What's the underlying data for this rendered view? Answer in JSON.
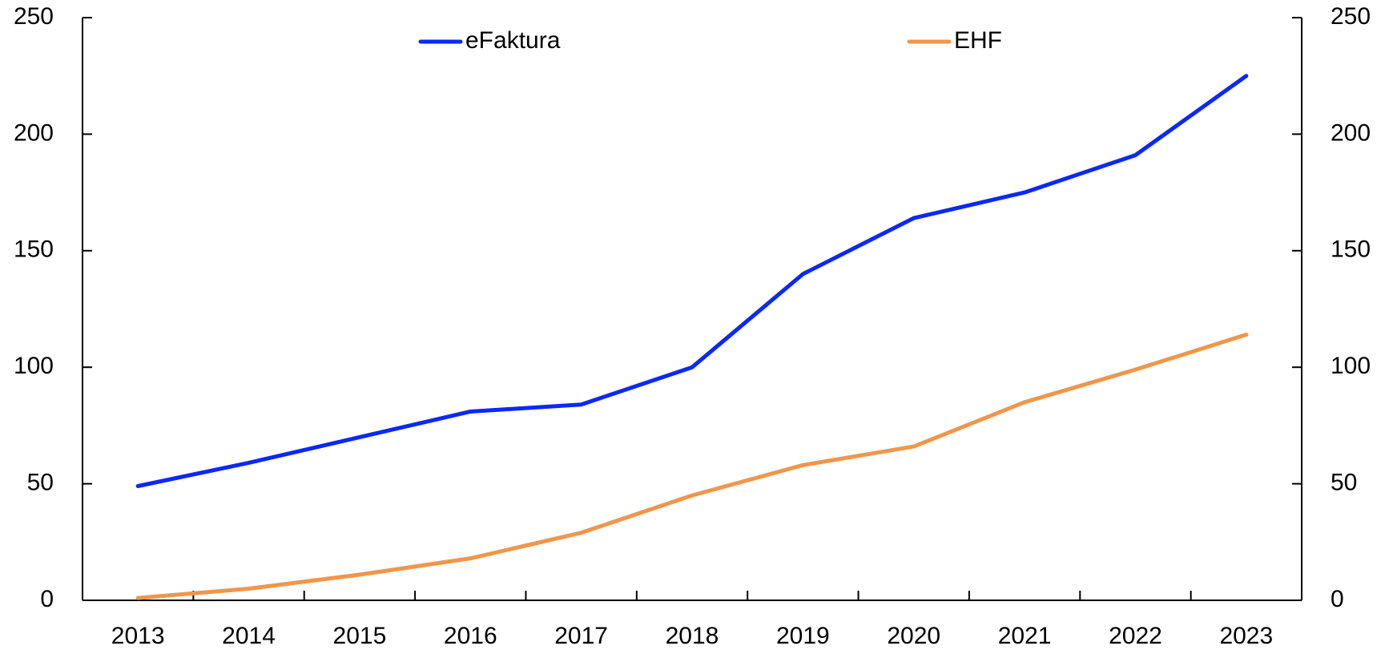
{
  "chart_data": {
    "type": "line",
    "categories": [
      "2013",
      "2014",
      "2015",
      "2016",
      "2017",
      "2018",
      "2019",
      "2020",
      "2021",
      "2022",
      "2023"
    ],
    "series": [
      {
        "name": "eFaktura",
        "color": "#0a28ff",
        "values": [
          49,
          59,
          70,
          81,
          84,
          100,
          140,
          164,
          175,
          191,
          225
        ]
      },
      {
        "name": "EHF",
        "color": "#f0964b",
        "values": [
          1,
          5,
          11,
          18,
          29,
          45,
          58,
          66,
          85,
          99,
          114
        ]
      }
    ],
    "ylim": [
      0,
      250
    ],
    "yticks": [
      0,
      50,
      100,
      150,
      200,
      250
    ],
    "y2lim": [
      0,
      250
    ],
    "y2ticks": [
      0,
      50,
      100,
      150,
      200,
      250
    ],
    "legend": "top"
  }
}
